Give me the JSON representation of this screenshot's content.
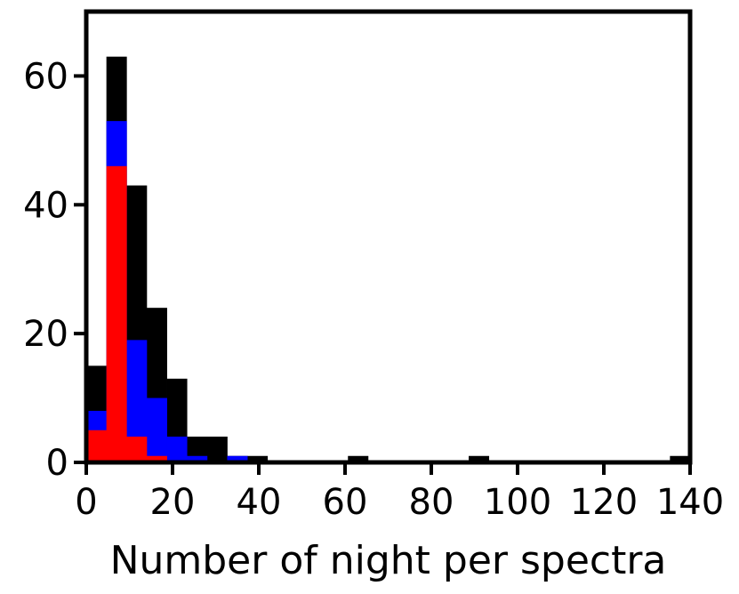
{
  "chart_data": {
    "type": "bar",
    "subtype": "overlaid-histogram",
    "title": "",
    "xlabel": "Number of night per spectra",
    "ylabel": "",
    "xlim": [
      0,
      140
    ],
    "ylim": [
      0,
      70
    ],
    "xticks": [
      0,
      20,
      40,
      60,
      80,
      100,
      120,
      140
    ],
    "yticks": [
      0,
      20,
      40,
      60
    ],
    "bin_width": 4.67,
    "bin_edges": [
      0,
      4.67,
      9.33,
      14,
      18.67,
      23.33,
      28,
      32.67,
      37.33,
      42,
      46.67,
      51.33,
      56,
      60.67,
      65.33,
      70,
      74.67,
      79.33,
      84,
      88.67,
      93.33,
      98,
      102.67,
      107.33,
      112,
      116.67,
      121.33,
      126,
      130.67,
      135.33,
      140
    ],
    "grid": false,
    "legend": "none",
    "series": [
      {
        "color": "#000000",
        "values": [
          15,
          63,
          43,
          24,
          13,
          4,
          4,
          1,
          1,
          0,
          0,
          0,
          0,
          1,
          0,
          0,
          0,
          0,
          0,
          1,
          0,
          0,
          0,
          0,
          0,
          0,
          0,
          0,
          0,
          1
        ]
      },
      {
        "color": "#0000ff",
        "values": [
          8,
          53,
          19,
          10,
          4,
          1,
          0,
          1,
          0,
          0,
          0,
          0,
          0,
          0,
          0,
          0,
          0,
          0,
          0,
          0,
          0,
          0,
          0,
          0,
          0,
          0,
          0,
          0,
          0,
          0
        ]
      },
      {
        "color": "#ff0000",
        "values": [
          5,
          46,
          4,
          1,
          0,
          0,
          0,
          0,
          0,
          0,
          0,
          0,
          0,
          0,
          0,
          0,
          0,
          0,
          0,
          0,
          0,
          0,
          0,
          0,
          0,
          0,
          0,
          0,
          0,
          0
        ]
      }
    ]
  }
}
